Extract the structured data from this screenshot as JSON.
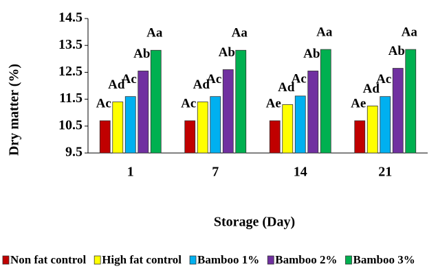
{
  "chart_data": {
    "type": "bar",
    "x_label": "Storage (Day)",
    "y_label": "Dry matter (%)",
    "categories": [
      "1",
      "7",
      "14",
      "21"
    ],
    "series": [
      {
        "name": "Non fat control",
        "color": "#c00000",
        "values": [
          10.7,
          10.7,
          10.7,
          10.7
        ],
        "labels": [
          "Ac",
          "Ac",
          "Ae",
          "Ae"
        ]
      },
      {
        "name": "High fat control",
        "color": "#ffff00",
        "values": [
          11.4,
          11.4,
          11.3,
          11.25
        ],
        "labels": [
          "Ad",
          "Ad",
          "Ad",
          "Ad"
        ]
      },
      {
        "name": "Bamboo 1%",
        "color": "#00b0f0",
        "values": [
          11.6,
          11.6,
          11.62,
          11.6
        ],
        "labels": [
          "Ac",
          "Ac",
          "Ac",
          "Ac"
        ]
      },
      {
        "name": "Bamboo 2%",
        "color": "#7030a0",
        "values": [
          12.55,
          12.6,
          12.55,
          12.65
        ],
        "labels": [
          "Ab",
          "Ab",
          "Ab",
          "Ab"
        ]
      },
      {
        "name": "Bamboo 3%",
        "color": "#00b050",
        "values": [
          13.32,
          13.32,
          13.35,
          13.35
        ],
        "labels": [
          "Aa",
          "Aa",
          "Aa",
          "Aa"
        ]
      }
    ],
    "ylim": [
      9.5,
      14.5
    ],
    "yticks": [
      9.5,
      10.5,
      11.5,
      12.5,
      13.5,
      14.5
    ],
    "grid": false
  }
}
